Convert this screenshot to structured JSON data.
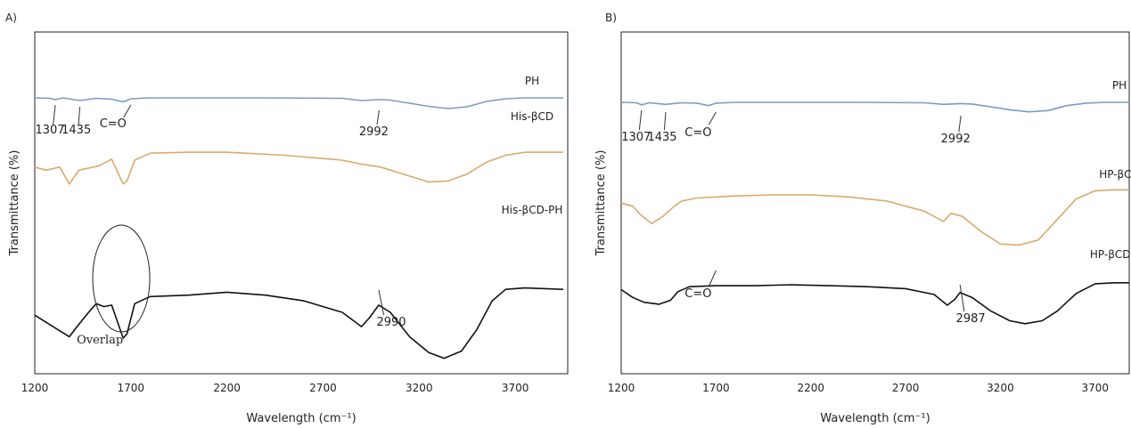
{
  "chart_data": [
    {
      "type": "line",
      "panel_label": "A)",
      "xlabel": "Wavelength (cm⁻¹)",
      "ylabel": "Transmittance (%)",
      "xlim": [
        1200,
        3950
      ],
      "x_ticks": [
        1200,
        1700,
        2200,
        2700,
        3200,
        3700
      ],
      "series": [
        {
          "name": "PH",
          "color": "#7a9cc6",
          "points": [
            [
              1200,
              0.92
            ],
            [
              1280,
              0.91
            ],
            [
              1307,
              0.88
            ],
            [
              1350,
              0.92
            ],
            [
              1435,
              0.86
            ],
            [
              1520,
              0.91
            ],
            [
              1600,
              0.89
            ],
            [
              1660,
              0.83
            ],
            [
              1700,
              0.9
            ],
            [
              1800,
              0.92
            ],
            [
              2000,
              0.92
            ],
            [
              2400,
              0.92
            ],
            [
              2800,
              0.91
            ],
            [
              2900,
              0.86
            ],
            [
              2992,
              0.88
            ],
            [
              3050,
              0.87
            ],
            [
              3150,
              0.8
            ],
            [
              3250,
              0.73
            ],
            [
              3350,
              0.68
            ],
            [
              3450,
              0.72
            ],
            [
              3550,
              0.84
            ],
            [
              3650,
              0.9
            ],
            [
              3750,
              0.92
            ],
            [
              3950,
              0.92
            ]
          ]
        },
        {
          "name": "His-βCD",
          "color": "#d9a96b",
          "points": [
            [
              1200,
              0.55
            ],
            [
              1260,
              0.52
            ],
            [
              1330,
              0.55
            ],
            [
              1380,
              0.38
            ],
            [
              1430,
              0.52
            ],
            [
              1480,
              0.54
            ],
            [
              1530,
              0.56
            ],
            [
              1600,
              0.63
            ],
            [
              1660,
              0.38
            ],
            [
              1680,
              0.41
            ],
            [
              1720,
              0.62
            ],
            [
              1800,
              0.69
            ],
            [
              2000,
              0.7
            ],
            [
              2200,
              0.7
            ],
            [
              2500,
              0.67
            ],
            [
              2800,
              0.62
            ],
            [
              2900,
              0.58
            ],
            [
              3000,
              0.55
            ],
            [
              3150,
              0.46
            ],
            [
              3250,
              0.4
            ],
            [
              3350,
              0.41
            ],
            [
              3450,
              0.48
            ],
            [
              3550,
              0.6
            ],
            [
              3650,
              0.67
            ],
            [
              3750,
              0.7
            ],
            [
              3950,
              0.7
            ]
          ]
        },
        {
          "name": "His-βCD-PH",
          "color": "#111111",
          "points": [
            [
              1200,
              0.2
            ],
            [
              1260,
              0.15
            ],
            [
              1320,
              0.1
            ],
            [
              1380,
              0.05
            ],
            [
              1420,
              0.12
            ],
            [
              1480,
              0.22
            ],
            [
              1520,
              0.28
            ],
            [
              1560,
              0.26
            ],
            [
              1600,
              0.27
            ],
            [
              1660,
              0.04
            ],
            [
              1680,
              0.07
            ],
            [
              1720,
              0.28
            ],
            [
              1800,
              0.33
            ],
            [
              2000,
              0.34
            ],
            [
              2200,
              0.36
            ],
            [
              2400,
              0.34
            ],
            [
              2600,
              0.3
            ],
            [
              2800,
              0.22
            ],
            [
              2900,
              0.12
            ],
            [
              2940,
              0.18
            ],
            [
              2990,
              0.27
            ],
            [
              3050,
              0.22
            ],
            [
              3150,
              0.05
            ],
            [
              3250,
              -0.06
            ],
            [
              3330,
              -0.1
            ],
            [
              3420,
              -0.05
            ],
            [
              3500,
              0.1
            ],
            [
              3580,
              0.3
            ],
            [
              3650,
              0.38
            ],
            [
              3750,
              0.39
            ],
            [
              3950,
              0.38
            ]
          ]
        }
      ],
      "annotations": [
        "1307",
        "1435",
        "C=O",
        "2992",
        "2990",
        "Overlap"
      ]
    },
    {
      "type": "line",
      "panel_label": "B)",
      "xlabel": "Wavelength (cm⁻¹)",
      "ylabel": "Transmittance (%)",
      "xlim": [
        1200,
        3950
      ],
      "x_ticks": [
        1200,
        1700,
        2200,
        2700,
        3200,
        3700
      ],
      "series": [
        {
          "name": "PH",
          "color": "#7a9cc6",
          "points": [
            [
              1200,
              0.92
            ],
            [
              1280,
              0.91
            ],
            [
              1307,
              0.86
            ],
            [
              1350,
              0.91
            ],
            [
              1435,
              0.87
            ],
            [
              1520,
              0.91
            ],
            [
              1600,
              0.9
            ],
            [
              1660,
              0.84
            ],
            [
              1700,
              0.9
            ],
            [
              1800,
              0.92
            ],
            [
              2000,
              0.92
            ],
            [
              2400,
              0.92
            ],
            [
              2800,
              0.91
            ],
            [
              2900,
              0.87
            ],
            [
              2992,
              0.89
            ],
            [
              3050,
              0.88
            ],
            [
              3150,
              0.81
            ],
            [
              3250,
              0.74
            ],
            [
              3350,
              0.69
            ],
            [
              3450,
              0.72
            ],
            [
              3550,
              0.84
            ],
            [
              3650,
              0.9
            ],
            [
              3750,
              0.92
            ],
            [
              3950,
              0.92
            ]
          ]
        },
        {
          "name": "HP-βCD",
          "color": "#d9a96b",
          "points": [
            [
              1200,
              0.58
            ],
            [
              1260,
              0.55
            ],
            [
              1300,
              0.47
            ],
            [
              1360,
              0.38
            ],
            [
              1420,
              0.45
            ],
            [
              1480,
              0.55
            ],
            [
              1520,
              0.6
            ],
            [
              1600,
              0.63
            ],
            [
              1800,
              0.65
            ],
            [
              2000,
              0.66
            ],
            [
              2200,
              0.66
            ],
            [
              2400,
              0.64
            ],
            [
              2600,
              0.6
            ],
            [
              2800,
              0.5
            ],
            [
              2900,
              0.4
            ],
            [
              2940,
              0.48
            ],
            [
              3000,
              0.45
            ],
            [
              3100,
              0.3
            ],
            [
              3200,
              0.18
            ],
            [
              3300,
              0.17
            ],
            [
              3400,
              0.22
            ],
            [
              3500,
              0.42
            ],
            [
              3600,
              0.62
            ],
            [
              3700,
              0.7
            ],
            [
              3800,
              0.71
            ],
            [
              3950,
              0.71
            ]
          ]
        },
        {
          "name": "HP-βCD-PH",
          "color": "#111111",
          "points": [
            [
              1200,
              0.3
            ],
            [
              1260,
              0.22
            ],
            [
              1320,
              0.17
            ],
            [
              1400,
              0.15
            ],
            [
              1460,
              0.19
            ],
            [
              1500,
              0.28
            ],
            [
              1560,
              0.33
            ],
            [
              1700,
              0.34
            ],
            [
              1900,
              0.34
            ],
            [
              2100,
              0.35
            ],
            [
              2300,
              0.34
            ],
            [
              2500,
              0.33
            ],
            [
              2700,
              0.31
            ],
            [
              2850,
              0.25
            ],
            [
              2920,
              0.14
            ],
            [
              2960,
              0.2
            ],
            [
              2987,
              0.27
            ],
            [
              3050,
              0.22
            ],
            [
              3150,
              0.08
            ],
            [
              3250,
              -0.02
            ],
            [
              3330,
              -0.05
            ],
            [
              3420,
              -0.02
            ],
            [
              3500,
              0.08
            ],
            [
              3600,
              0.26
            ],
            [
              3700,
              0.36
            ],
            [
              3800,
              0.37
            ],
            [
              3950,
              0.37
            ]
          ]
        }
      ],
      "annotations": [
        "1307",
        "1435",
        "C=O",
        "2992",
        "C=O",
        "2987"
      ]
    }
  ]
}
